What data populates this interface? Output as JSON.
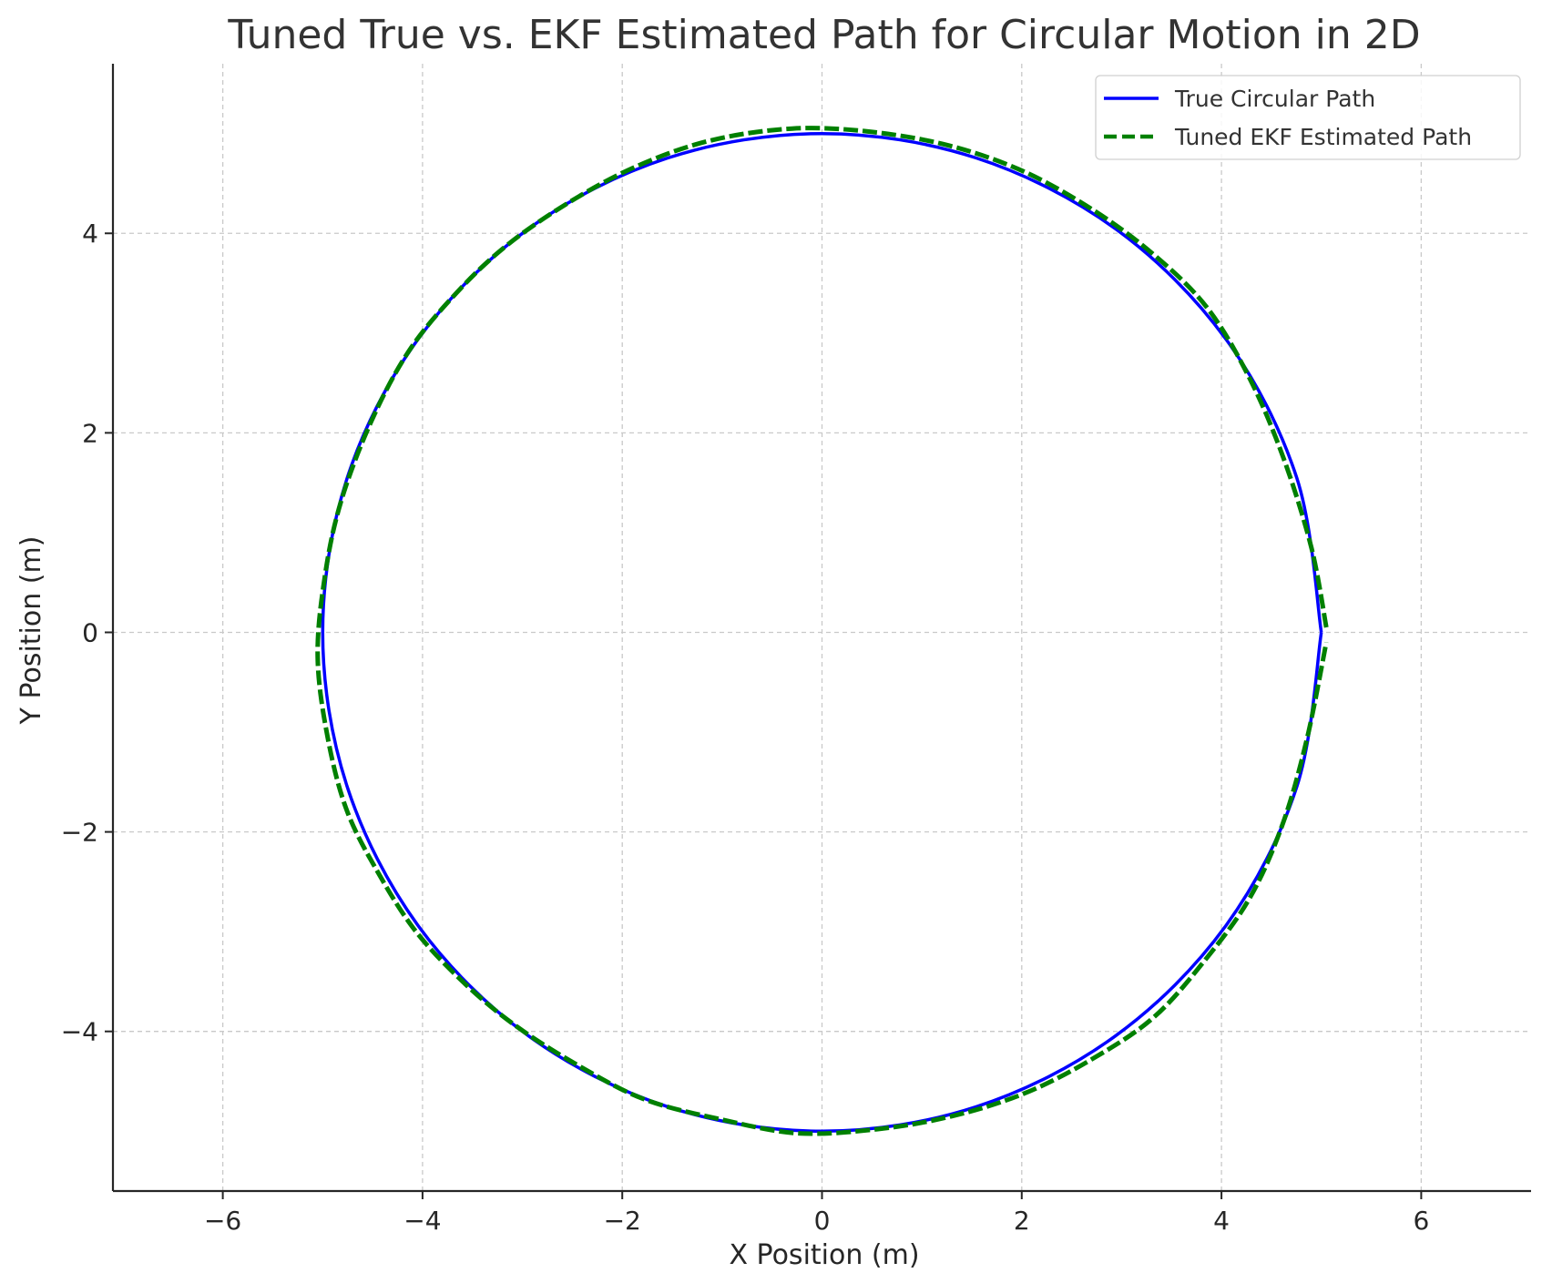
{
  "chart_data": {
    "type": "line",
    "title": "Tuned True vs. EKF Estimated Path for Circular Motion in 2D",
    "xlabel": "X Position (m)",
    "ylabel": "Y Position (m)",
    "xlim": [
      -7.1,
      7.1
    ],
    "ylim": [
      -5.6,
      5.7
    ],
    "x_ticks": [
      -6,
      -4,
      -2,
      0,
      2,
      4,
      6
    ],
    "y_ticks": [
      -4,
      -2,
      0,
      2,
      4
    ],
    "x_tick_labels": [
      "−6",
      "−4",
      "−2",
      "0",
      "2",
      "4",
      "6"
    ],
    "y_tick_labels": [
      "−4",
      "−2",
      "0",
      "2",
      "4"
    ],
    "grid": true,
    "legend_position": "top-right",
    "series": [
      {
        "name": "True Circular Path",
        "color": "#0000ff",
        "line_style": "solid",
        "x": [
          5.0,
          4.755,
          4.045,
          2.939,
          1.545,
          0.0,
          -1.545,
          -2.939,
          -4.045,
          -4.755,
          -5.0,
          -4.755,
          -4.045,
          -2.939,
          -1.545,
          0.0,
          1.545,
          2.939,
          4.045,
          4.755,
          5.0
        ],
        "y": [
          0.0,
          1.545,
          2.939,
          4.045,
          4.755,
          5.0,
          4.755,
          4.045,
          2.939,
          1.545,
          0.0,
          -1.545,
          -2.939,
          -4.045,
          -4.755,
          -5.0,
          -4.755,
          -4.045,
          -2.939,
          -1.545,
          0.0
        ]
      },
      {
        "name": "Tuned EKF Estimated Path",
        "color": "#008000",
        "line_style": "dashed",
        "x": [
          5.05,
          4.9,
          4.62,
          4.28,
          3.86,
          3.33,
          2.72,
          2.02,
          1.27,
          0.47,
          -0.3,
          -1.12,
          -1.86,
          -2.55,
          -3.18,
          -3.7,
          -4.15,
          -4.52,
          -4.82,
          -4.98,
          -5.05,
          -4.95,
          -4.76,
          -4.45,
          -4.08,
          -3.62,
          -3.1,
          -2.46,
          -1.78,
          -1.02,
          -0.25,
          0.55,
          1.3,
          2.03,
          2.7,
          3.32,
          3.84,
          4.29,
          4.62,
          4.86,
          5.05
        ],
        "y": [
          0.05,
          0.85,
          1.75,
          2.55,
          3.25,
          3.78,
          4.23,
          4.62,
          4.88,
          5.02,
          5.05,
          4.93,
          4.67,
          4.3,
          3.86,
          3.36,
          2.8,
          2.1,
          1.3,
          0.55,
          -0.25,
          -1.05,
          -1.78,
          -2.4,
          -2.98,
          -3.48,
          -3.92,
          -4.33,
          -4.68,
          -4.88,
          -5.02,
          -4.98,
          -4.85,
          -4.62,
          -4.28,
          -3.86,
          -3.28,
          -2.65,
          -1.9,
          -1.05,
          -0.1
        ]
      }
    ]
  }
}
